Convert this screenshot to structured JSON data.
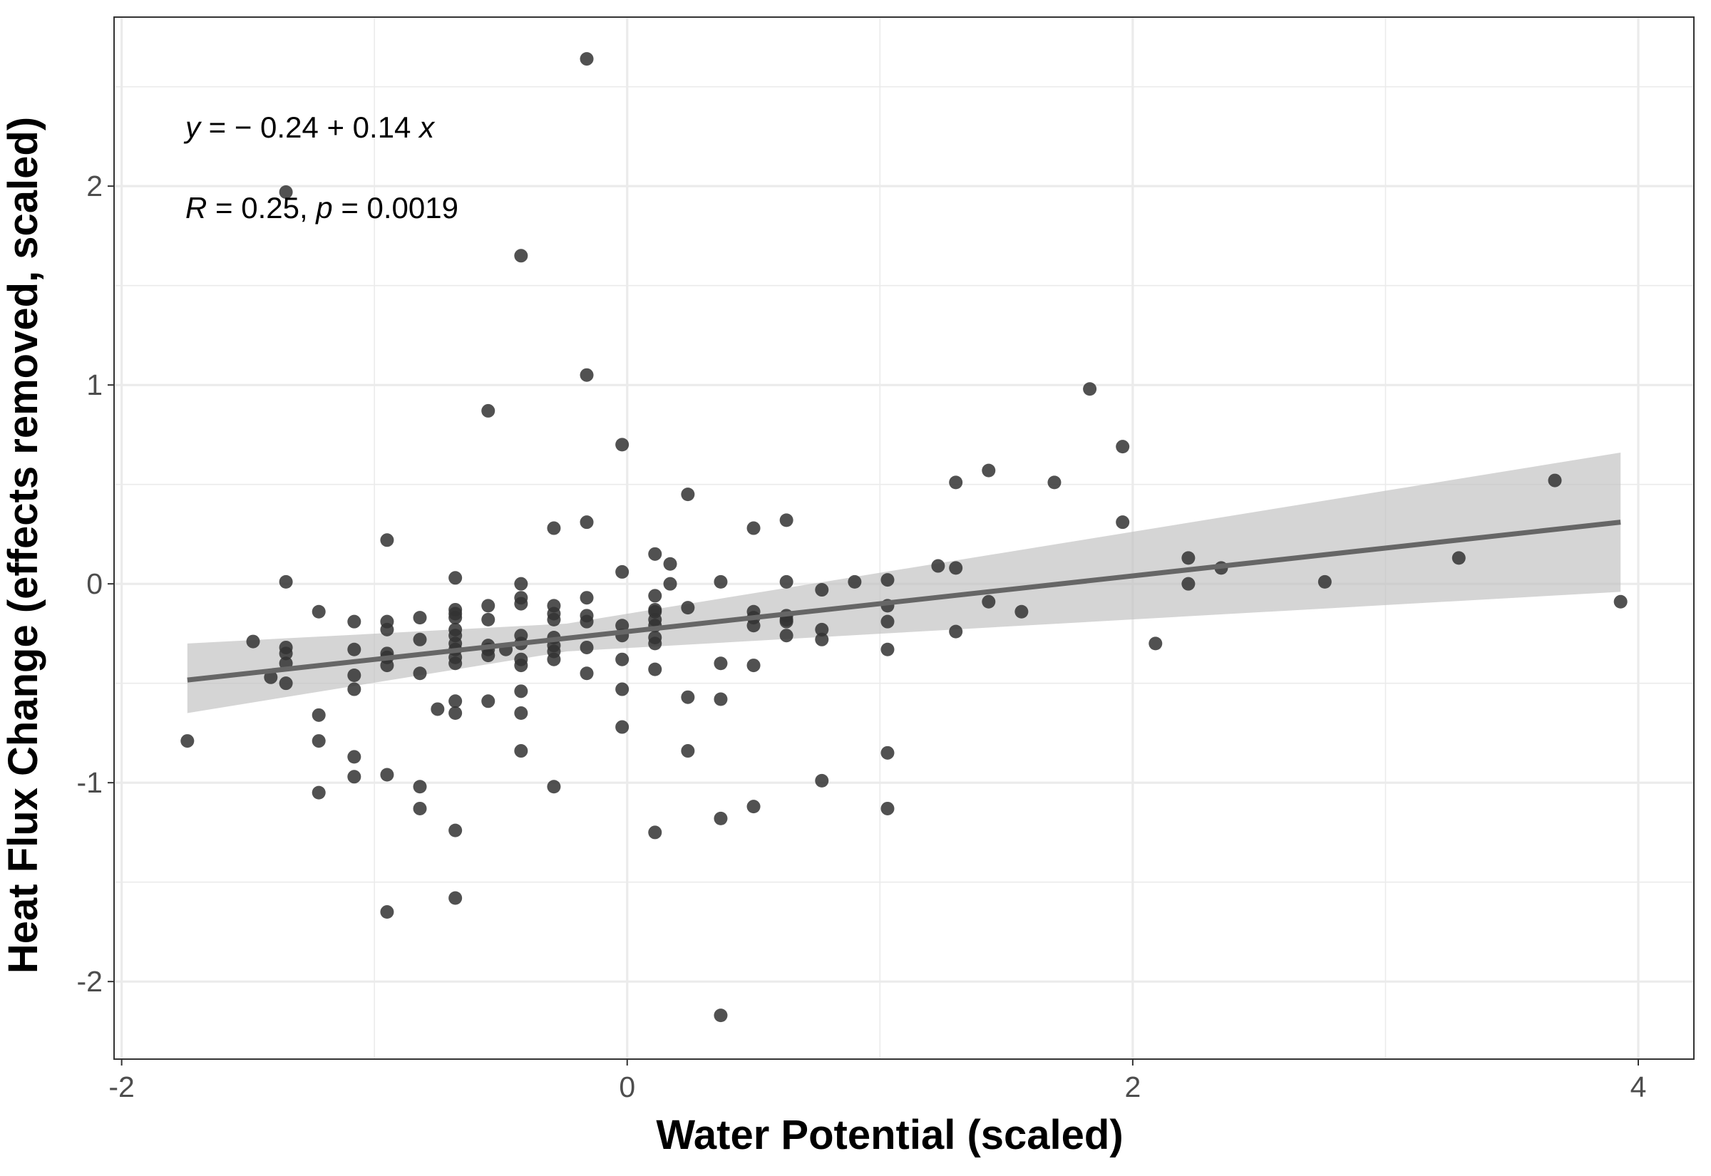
{
  "chart_data": {
    "type": "scatter",
    "xlabel": "Water Potential (scaled)",
    "ylabel": "Heat Flux Change (effects removed, scaled)",
    "xlim": [
      -2.03,
      4.22
    ],
    "ylim": [
      -2.39,
      2.85
    ],
    "xticks": [
      -2,
      0,
      2,
      4
    ],
    "yticks": [
      -2,
      -1,
      0,
      1,
      2
    ],
    "x_tick_labels": [
      "-2",
      "0",
      "2",
      "4"
    ],
    "y_tick_labels": [
      "-2",
      "-1",
      "0",
      "1",
      "2"
    ],
    "grid": true,
    "annotation": {
      "equation": {
        "y": "y",
        "eq": " = − 0.24 + 0.14 ",
        "x": "x"
      },
      "stats": {
        "r": "R",
        "r_val": " = 0.25, ",
        "p": "p",
        "p_val": " = 0.0019"
      }
    },
    "fit": {
      "intercept": -0.24,
      "slope": 0.14,
      "x_range": [
        -1.74,
        3.93
      ]
    },
    "confidence_band": [
      {
        "x": -1.74,
        "lo": -0.65,
        "hi": -0.3
      },
      {
        "x": -0.24,
        "lo": -0.34,
        "hi": -0.2
      },
      {
        "x": 3.93,
        "lo": -0.04,
        "hi": 0.66
      }
    ],
    "colors": {
      "points": "#333333",
      "fit_line": "#666666",
      "band": "#bebebe",
      "grid": "#ebebeb",
      "panel_border": "#333333"
    },
    "points": [
      [
        -1.74,
        -0.79
      ],
      [
        -1.48,
        -0.29
      ],
      [
        -1.41,
        -0.47
      ],
      [
        -1.35,
        1.97
      ],
      [
        -1.35,
        0.01
      ],
      [
        -1.35,
        -0.32
      ],
      [
        -1.35,
        -0.35
      ],
      [
        -1.35,
        -0.4
      ],
      [
        -1.35,
        -0.5
      ],
      [
        -1.22,
        -0.14
      ],
      [
        -1.22,
        -0.66
      ],
      [
        -1.22,
        -0.79
      ],
      [
        -1.22,
        -1.05
      ],
      [
        -1.08,
        -0.19
      ],
      [
        -1.08,
        -0.33
      ],
      [
        -1.08,
        -0.46
      ],
      [
        -1.08,
        -0.53
      ],
      [
        -1.08,
        -0.87
      ],
      [
        -1.08,
        -0.97
      ],
      [
        -0.95,
        0.22
      ],
      [
        -0.95,
        -0.19
      ],
      [
        -0.95,
        -0.23
      ],
      [
        -0.95,
        -0.35
      ],
      [
        -0.95,
        -0.37
      ],
      [
        -0.95,
        -0.41
      ],
      [
        -0.95,
        -0.96
      ],
      [
        -0.95,
        -1.65
      ],
      [
        -0.82,
        -0.17
      ],
      [
        -0.82,
        -0.28
      ],
      [
        -0.82,
        -0.45
      ],
      [
        -0.82,
        -1.02
      ],
      [
        -0.82,
        -1.13
      ],
      [
        -0.75,
        -0.63
      ],
      [
        -0.68,
        0.03
      ],
      [
        -0.68,
        -0.13
      ],
      [
        -0.68,
        -0.15
      ],
      [
        -0.68,
        -0.17
      ],
      [
        -0.68,
        -0.23
      ],
      [
        -0.68,
        -0.26
      ],
      [
        -0.68,
        -0.3
      ],
      [
        -0.68,
        -0.33
      ],
      [
        -0.68,
        -0.37
      ],
      [
        -0.68,
        -0.4
      ],
      [
        -0.68,
        -0.59
      ],
      [
        -0.68,
        -0.65
      ],
      [
        -0.68,
        -1.24
      ],
      [
        -0.68,
        -1.58
      ],
      [
        -0.55,
        0.87
      ],
      [
        -0.55,
        -0.11
      ],
      [
        -0.55,
        -0.18
      ],
      [
        -0.55,
        -0.31
      ],
      [
        -0.55,
        -0.33
      ],
      [
        -0.55,
        -0.36
      ],
      [
        -0.55,
        -0.59
      ],
      [
        -0.48,
        -0.33
      ],
      [
        -0.42,
        1.65
      ],
      [
        -0.42,
        0.0
      ],
      [
        -0.42,
        -0.07
      ],
      [
        -0.42,
        -0.1
      ],
      [
        -0.42,
        -0.26
      ],
      [
        -0.42,
        -0.3
      ],
      [
        -0.42,
        -0.38
      ],
      [
        -0.42,
        -0.41
      ],
      [
        -0.42,
        -0.54
      ],
      [
        -0.42,
        -0.65
      ],
      [
        -0.42,
        -0.84
      ],
      [
        -0.29,
        0.28
      ],
      [
        -0.29,
        -0.11
      ],
      [
        -0.29,
        -0.15
      ],
      [
        -0.29,
        -0.18
      ],
      [
        -0.29,
        -0.27
      ],
      [
        -0.29,
        -0.31
      ],
      [
        -0.29,
        -0.34
      ],
      [
        -0.29,
        -0.38
      ],
      [
        -0.29,
        -1.02
      ],
      [
        -0.16,
        2.64
      ],
      [
        -0.16,
        1.05
      ],
      [
        -0.16,
        0.31
      ],
      [
        -0.16,
        -0.07
      ],
      [
        -0.16,
        -0.16
      ],
      [
        -0.16,
        -0.19
      ],
      [
        -0.16,
        -0.32
      ],
      [
        -0.16,
        -0.45
      ],
      [
        -0.02,
        0.7
      ],
      [
        -0.02,
        0.06
      ],
      [
        -0.02,
        -0.21
      ],
      [
        -0.02,
        -0.26
      ],
      [
        -0.02,
        -0.38
      ],
      [
        -0.02,
        -0.53
      ],
      [
        -0.02,
        -0.72
      ],
      [
        0.11,
        0.15
      ],
      [
        0.11,
        -0.06
      ],
      [
        0.11,
        -0.13
      ],
      [
        0.11,
        -0.14
      ],
      [
        0.11,
        -0.18
      ],
      [
        0.11,
        -0.21
      ],
      [
        0.11,
        -0.27
      ],
      [
        0.11,
        -0.3
      ],
      [
        0.11,
        -0.43
      ],
      [
        0.11,
        -1.25
      ],
      [
        0.17,
        0.1
      ],
      [
        0.17,
        0.0
      ],
      [
        0.24,
        0.45
      ],
      [
        0.24,
        -0.12
      ],
      [
        0.24,
        -0.57
      ],
      [
        0.24,
        -0.84
      ],
      [
        0.37,
        0.01
      ],
      [
        0.37,
        -0.4
      ],
      [
        0.37,
        -0.58
      ],
      [
        0.37,
        -1.18
      ],
      [
        0.37,
        -2.17
      ],
      [
        0.5,
        0.28
      ],
      [
        0.5,
        -0.14
      ],
      [
        0.5,
        -0.17
      ],
      [
        0.5,
        -0.21
      ],
      [
        0.5,
        -0.41
      ],
      [
        0.5,
        -1.12
      ],
      [
        0.63,
        0.32
      ],
      [
        0.63,
        0.01
      ],
      [
        0.63,
        -0.16
      ],
      [
        0.63,
        -0.18
      ],
      [
        0.63,
        -0.19
      ],
      [
        0.63,
        -0.26
      ],
      [
        0.77,
        -0.03
      ],
      [
        0.77,
        -0.23
      ],
      [
        0.77,
        -0.28
      ],
      [
        0.77,
        -0.99
      ],
      [
        0.9,
        0.01
      ],
      [
        1.03,
        0.02
      ],
      [
        1.03,
        -0.11
      ],
      [
        1.03,
        -0.19
      ],
      [
        1.03,
        -0.33
      ],
      [
        1.03,
        -0.85
      ],
      [
        1.03,
        -1.13
      ],
      [
        1.23,
        0.09
      ],
      [
        1.3,
        0.51
      ],
      [
        1.3,
        0.08
      ],
      [
        1.3,
        -0.24
      ],
      [
        1.43,
        0.57
      ],
      [
        1.43,
        -0.09
      ],
      [
        1.56,
        -0.14
      ],
      [
        1.69,
        0.51
      ],
      [
        1.83,
        0.98
      ],
      [
        1.96,
        0.69
      ],
      [
        1.96,
        0.31
      ],
      [
        2.09,
        -0.3
      ],
      [
        2.22,
        0.13
      ],
      [
        2.22,
        0.0
      ],
      [
        2.35,
        0.08
      ],
      [
        2.76,
        0.01
      ],
      [
        3.29,
        0.13
      ],
      [
        3.67,
        0.52
      ],
      [
        3.93,
        -0.09
      ]
    ]
  }
}
